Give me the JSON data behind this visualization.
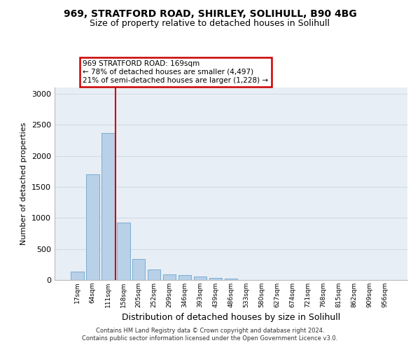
{
  "title_line1": "969, STRATFORD ROAD, SHIRLEY, SOLIHULL, B90 4BG",
  "title_line2": "Size of property relative to detached houses in Solihull",
  "xlabel": "Distribution of detached houses by size in Solihull",
  "ylabel": "Number of detached properties",
  "categories": [
    "17sqm",
    "64sqm",
    "111sqm",
    "158sqm",
    "205sqm",
    "252sqm",
    "299sqm",
    "346sqm",
    "393sqm",
    "439sqm",
    "486sqm",
    "533sqm",
    "580sqm",
    "627sqm",
    "674sqm",
    "721sqm",
    "768sqm",
    "815sqm",
    "862sqm",
    "909sqm",
    "956sqm"
  ],
  "values": [
    140,
    1700,
    2370,
    930,
    340,
    165,
    95,
    80,
    55,
    30,
    25,
    0,
    0,
    0,
    0,
    0,
    0,
    0,
    0,
    0,
    0
  ],
  "bar_color": "#b8d0e8",
  "bar_edge_color": "#7aaed0",
  "grid_color": "#d0dce8",
  "background_color": "#e8eef5",
  "annotation_text": "969 STRATFORD ROAD: 169sqm\n← 78% of detached houses are smaller (4,497)\n21% of semi-detached houses are larger (1,228) →",
  "annotation_box_color": "#ffffff",
  "annotation_box_edge_color": "#cc0000",
  "property_line_color": "#cc0000",
  "property_line_x": 2.5,
  "ylim": [
    0,
    3100
  ],
  "yticks": [
    0,
    500,
    1000,
    1500,
    2000,
    2500,
    3000
  ],
  "footer_line1": "Contains HM Land Registry data © Crown copyright and database right 2024.",
  "footer_line2": "Contains public sector information licensed under the Open Government Licence v3.0."
}
